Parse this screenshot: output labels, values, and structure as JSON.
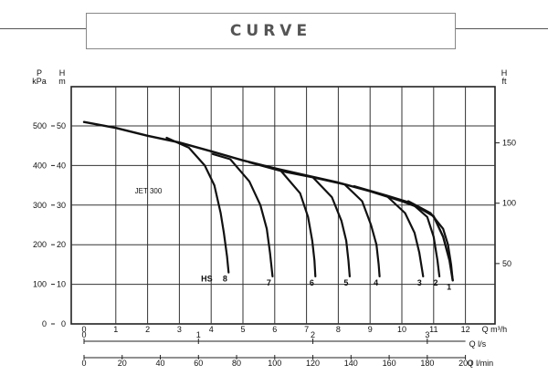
{
  "header": {
    "title": "CURVE"
  },
  "chart_data": {
    "type": "line",
    "title": "",
    "series_label": "JET 300",
    "left_axes": [
      {
        "name": "P",
        "unit": "kPa",
        "ticks": [
          0,
          100,
          200,
          300,
          400,
          500
        ]
      },
      {
        "name": "H",
        "unit": "m",
        "ticks": [
          0,
          10,
          20,
          30,
          40,
          50
        ]
      }
    ],
    "right_axis": {
      "name": "H",
      "unit": "ft",
      "ticks": [
        50,
        100,
        150
      ]
    },
    "x_axes": [
      {
        "label": "Q m³/h",
        "ticks": [
          0,
          1,
          2,
          3,
          4,
          5,
          6,
          7,
          8,
          9,
          10,
          11,
          12
        ]
      },
      {
        "label": "Q l/s",
        "ticks": [
          0,
          1,
          2,
          3
        ]
      },
      {
        "label": "Q l/min",
        "ticks": [
          0,
          20,
          40,
          60,
          80,
          100,
          120,
          140,
          160,
          180,
          200
        ]
      }
    ],
    "xlim": [
      0,
      12
    ],
    "ylim": [
      0,
      55
    ],
    "envelope": {
      "x": [
        0,
        1,
        2,
        3,
        4,
        5,
        6,
        7,
        8,
        9,
        10,
        10.5,
        11,
        11.3,
        11.5,
        11.6
      ],
      "y": [
        51,
        49.5,
        47.5,
        45.8,
        43.6,
        41.3,
        39.3,
        37.5,
        35.7,
        33.5,
        31,
        29.5,
        27.2,
        22,
        16,
        11
      ]
    },
    "curves": [
      {
        "name": "HS",
        "label": "8",
        "x": [
          2.6,
          3.3,
          3.8,
          4.1,
          4.3,
          4.4,
          4.5,
          4.55
        ],
        "y": [
          47,
          44.5,
          40,
          35,
          28,
          23,
          17,
          13
        ]
      },
      {
        "name": "7",
        "label": "7",
        "x": [
          4.05,
          4.6,
          5.2,
          5.55,
          5.75,
          5.85,
          5.93
        ],
        "y": [
          42.9,
          41.6,
          36,
          30,
          24,
          18,
          12
        ]
      },
      {
        "name": "6",
        "label": "6",
        "x": [
          5.2,
          6.2,
          6.8,
          7.05,
          7.18,
          7.25,
          7.28
        ],
        "y": [
          40.8,
          38.6,
          33,
          27,
          21,
          16,
          12
        ]
      },
      {
        "name": "5",
        "label": "5",
        "x": [
          6.2,
          7.2,
          7.8,
          8.1,
          8.25,
          8.32,
          8.36
        ],
        "y": [
          38.6,
          37,
          32,
          26,
          21,
          16,
          12
        ]
      },
      {
        "name": "4",
        "label": "4",
        "x": [
          7.2,
          8.2,
          8.75,
          9.03,
          9.2,
          9.27,
          9.3
        ],
        "y": [
          37,
          35.2,
          31,
          25,
          20,
          15,
          12
        ]
      },
      {
        "name": "3",
        "label": "3",
        "x": [
          8.5,
          9.5,
          10.1,
          10.4,
          10.55,
          10.63,
          10.67
        ],
        "y": [
          34.8,
          32.5,
          28,
          23,
          18,
          14,
          12
        ]
      },
      {
        "name": "2",
        "label": "2",
        "x": [
          9.5,
          10.3,
          10.8,
          11.0,
          11.12,
          11.18
        ],
        "y": [
          32.5,
          30.5,
          27,
          22,
          16,
          12
        ]
      },
      {
        "name": "1",
        "label": "1",
        "x": [
          10.2,
          10.9,
          11.3,
          11.45,
          11.55,
          11.6
        ],
        "y": [
          31,
          28,
          24,
          20,
          15,
          11
        ]
      }
    ],
    "grid": true
  }
}
